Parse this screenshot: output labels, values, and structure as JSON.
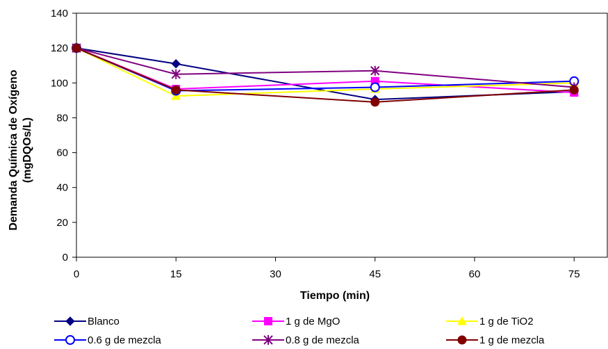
{
  "chart_data": {
    "type": "line",
    "title": "",
    "xlabel": "Tiempo (min)",
    "ylabel_line1": "Demanda Química de Oxígeno",
    "ylabel_line2": "(mgDQOs/L)",
    "xlim": [
      0,
      80
    ],
    "ylim": [
      0,
      140
    ],
    "xticks": [
      0,
      15,
      30,
      45,
      60,
      75
    ],
    "yticks": [
      0,
      20,
      40,
      60,
      80,
      100,
      120,
      140
    ],
    "grid": false,
    "legend_position": "bottom",
    "x": [
      0,
      15,
      45,
      75
    ],
    "series": [
      {
        "name": "Blanco",
        "values": [
          120,
          111,
          90.5,
          95
        ],
        "color": "#000080",
        "marker": "diamond"
      },
      {
        "name": "1 g de MgO",
        "values": [
          120,
          96.5,
          101,
          94.5
        ],
        "color": "#ff00ff",
        "marker": "square"
      },
      {
        "name": "1 g de TiO2",
        "values": [
          120,
          92.5,
          96.5,
          100
        ],
        "color": "#ffff00",
        "marker": "triangle"
      },
      {
        "name": "0.6 g de mezcla",
        "values": [
          120,
          95.5,
          97.5,
          101
        ],
        "color": "#0000ff",
        "marker": "circle-open"
      },
      {
        "name": "0.8 g de mezcla",
        "values": [
          120,
          105,
          107,
          97.5
        ],
        "color": "#800080",
        "marker": "asterisk"
      },
      {
        "name": "1 g de mezcla",
        "values": [
          120,
          96,
          89,
          96
        ],
        "color": "#800000",
        "marker": "circle"
      }
    ]
  }
}
